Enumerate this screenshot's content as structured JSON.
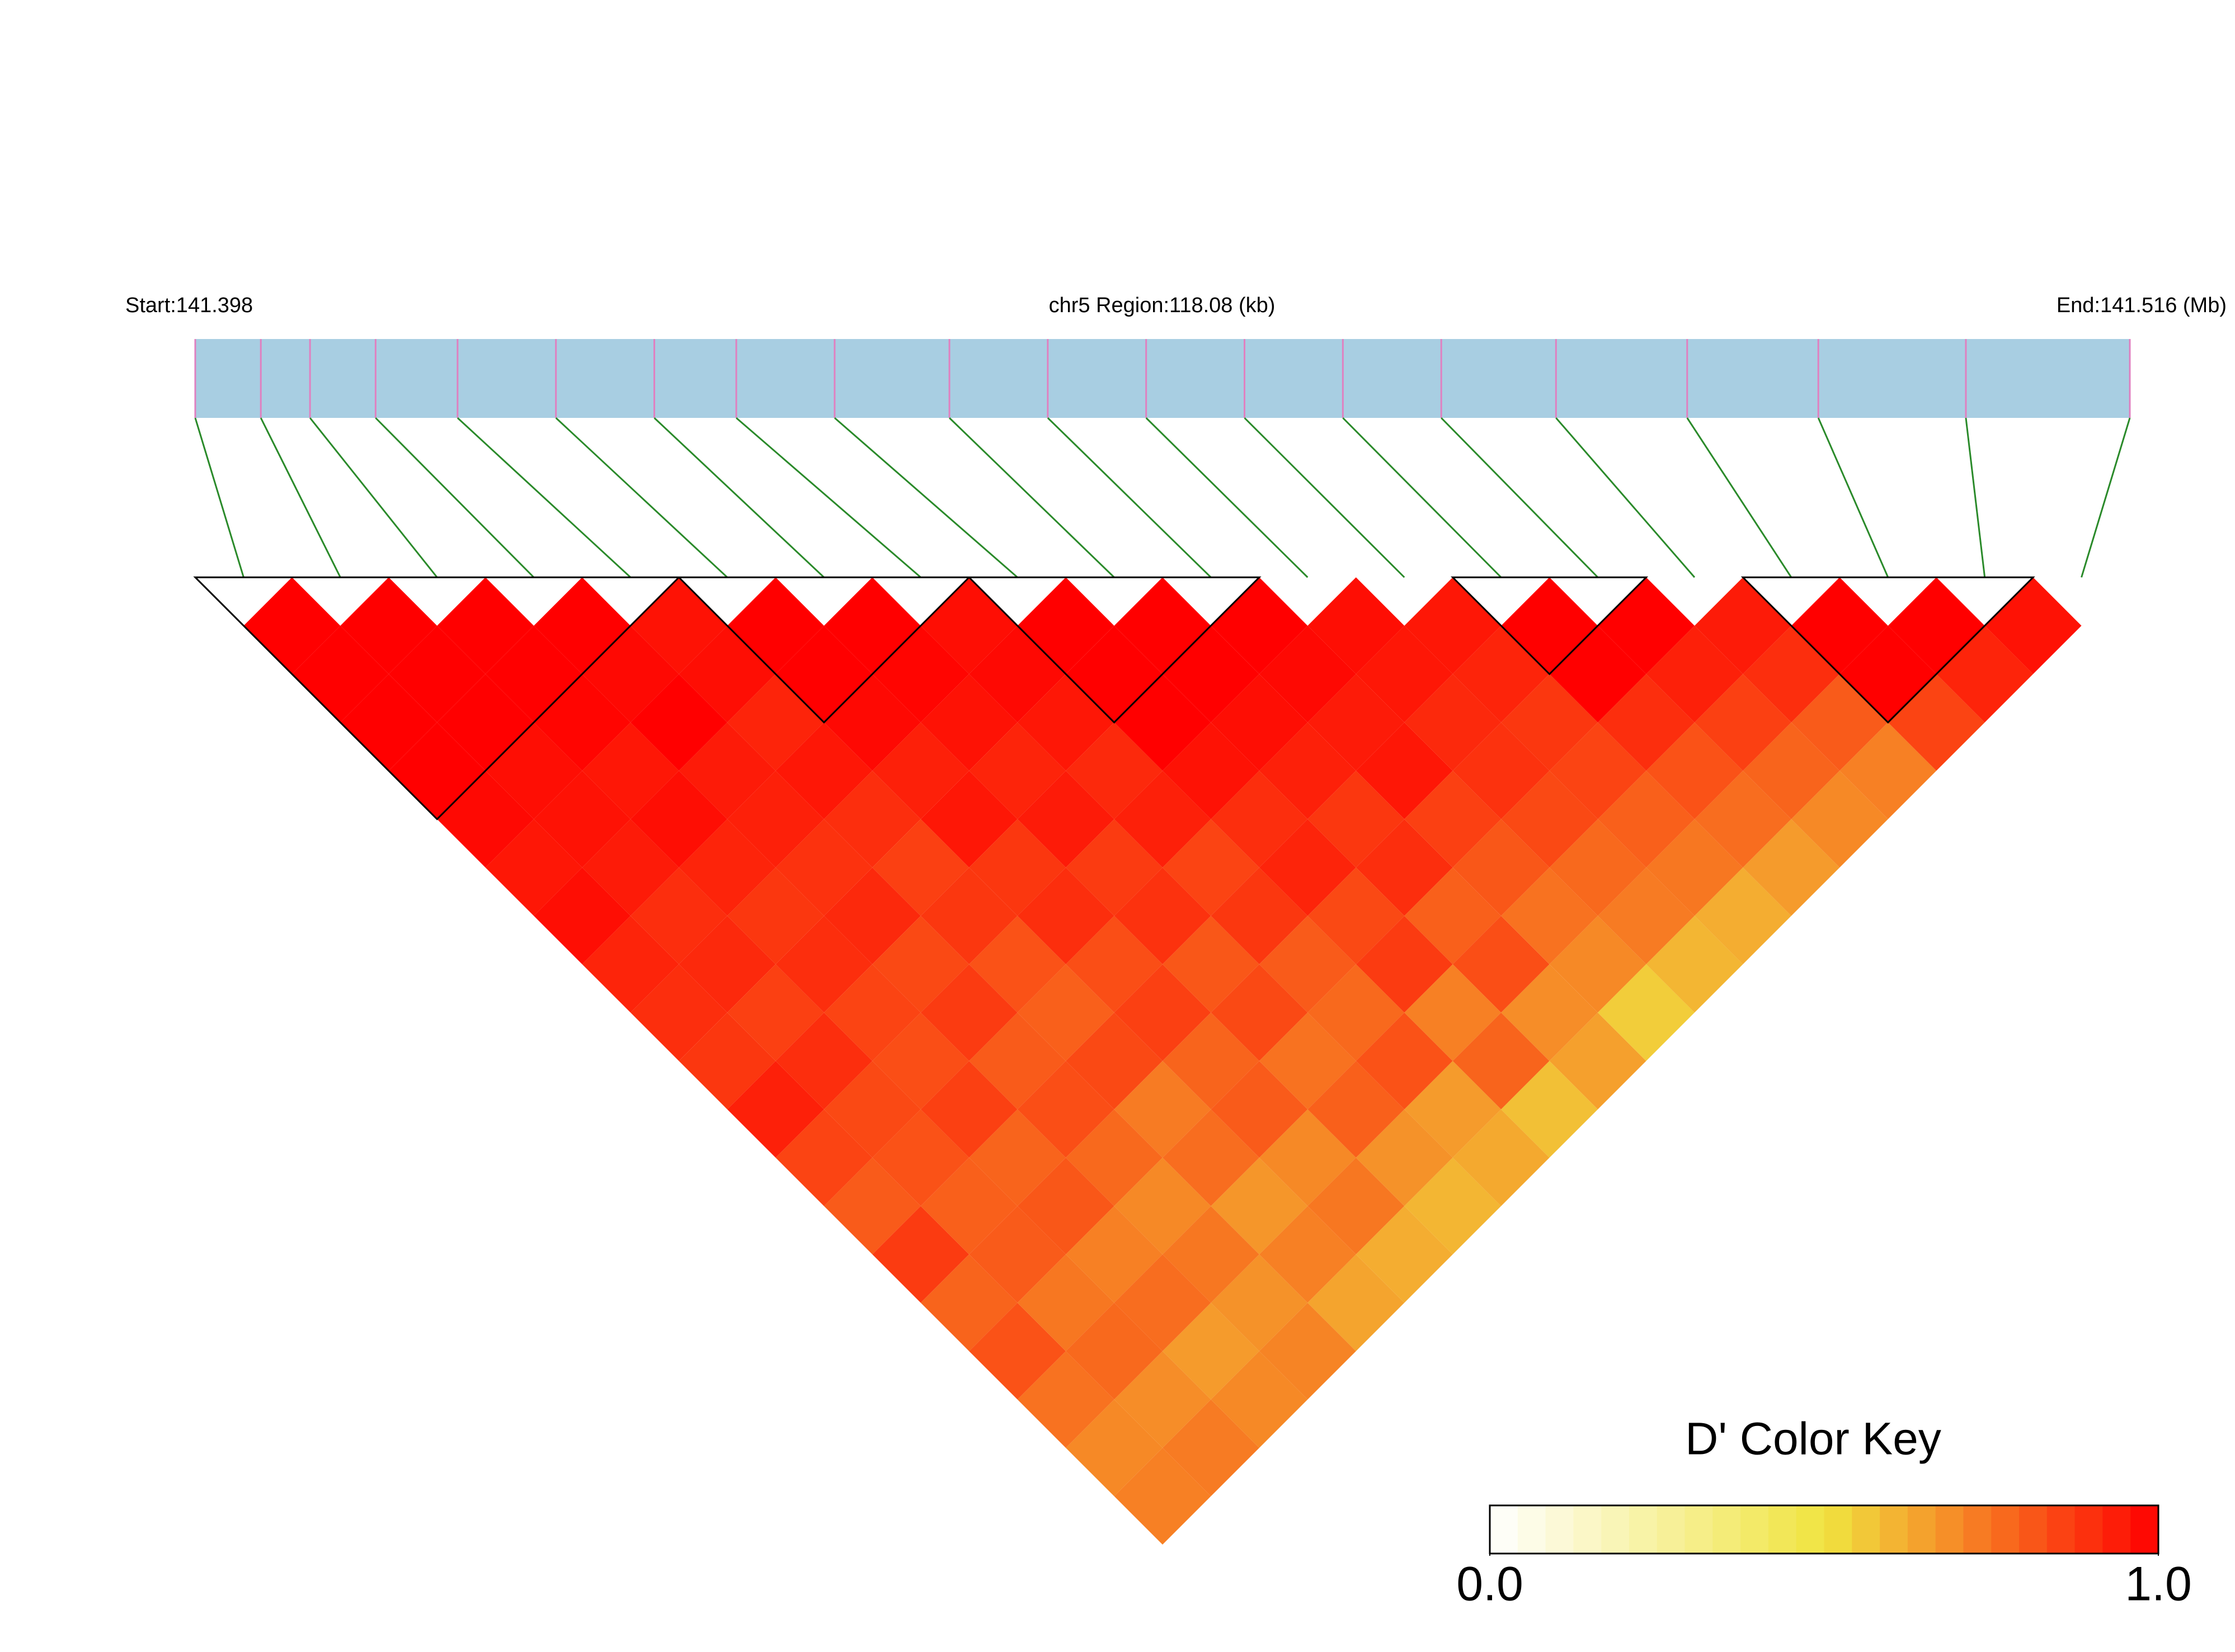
{
  "chart_data": {
    "type": "ld-heatmap",
    "start_label": "Start:141.398",
    "region_label": "chr5 Region:118.08 (kb)",
    "end_label": "End:141.516 (Mb)",
    "xlim": [
      141.398,
      141.516
    ],
    "positions": [
      141.398,
      141.402,
      141.405,
      141.409,
      141.414,
      141.42,
      141.426,
      141.431,
      141.437,
      141.444,
      141.45,
      141.456,
      141.462,
      141.468,
      141.474,
      141.481,
      141.489,
      141.497,
      141.506,
      141.516
    ],
    "dprime": [
      [
        1,
        1,
        1,
        1,
        0.98,
        0.95,
        0.97,
        0.92,
        0.9,
        0.88,
        0.93,
        0.85,
        0.8,
        0.87,
        0.78,
        0.82,
        0.75,
        0.7,
        0.72
      ],
      [
        1,
        1,
        1,
        0.97,
        0.96,
        0.94,
        0.9,
        0.91,
        0.86,
        0.9,
        0.84,
        0.82,
        0.79,
        0.8,
        0.74,
        0.77,
        0.69,
        0.73
      ],
      [
        1,
        1,
        0.99,
        0.95,
        0.97,
        0.92,
        0.88,
        0.9,
        0.85,
        0.83,
        0.86,
        0.78,
        0.81,
        0.72,
        0.76,
        0.66,
        0.7
      ],
      [
        1,
        0.98,
        1,
        0.94,
        0.93,
        0.89,
        0.91,
        0.84,
        0.87,
        0.8,
        0.83,
        0.77,
        0.7,
        0.74,
        0.68,
        0.71
      ],
      [
        0.96,
        0.97,
        0.92,
        0.95,
        0.9,
        0.86,
        0.88,
        0.82,
        0.79,
        0.84,
        0.73,
        0.76,
        0.67,
        0.72,
        0.64
      ],
      [
        1,
        1,
        0.98,
        0.93,
        0.95,
        0.88,
        0.9,
        0.83,
        0.86,
        0.78,
        0.8,
        0.7,
        0.74,
        0.62
      ],
      [
        1,
        0.99,
        0.96,
        0.92,
        0.94,
        0.87,
        0.89,
        0.81,
        0.84,
        0.75,
        0.79,
        0.68,
        0.6
      ],
      [
        0.97,
        0.98,
        0.95,
        0.91,
        0.93,
        0.85,
        0.88,
        0.8,
        0.77,
        0.82,
        0.66,
        0.63
      ],
      [
        1,
        1,
        1,
        0.96,
        0.9,
        0.92,
        0.84,
        0.87,
        0.72,
        0.78,
        0.58
      ],
      [
        1,
        1,
        0.97,
        0.93,
        0.88,
        0.9,
        0.79,
        0.83,
        0.69,
        0.65
      ],
      [
        1,
        0.98,
        0.94,
        0.95,
        0.86,
        0.81,
        0.75,
        0.7,
        0.55
      ],
      [
        0.97,
        0.95,
        0.91,
        0.89,
        0.84,
        0.77,
        0.73,
        0.6
      ],
      [
        0.95,
        0.92,
        0.88,
        0.85,
        0.79,
        0.74,
        0.62
      ],
      [
        1,
        1,
        0.9,
        0.82,
        0.76,
        0.66
      ],
      [
        1,
        0.93,
        0.86,
        0.78,
        0.7
      ],
      [
        0.94,
        0.9,
        0.8,
        0.72
      ],
      [
        1,
        1,
        0.85
      ],
      [
        1,
        0.92
      ],
      [
        0.96
      ]
    ],
    "blocks": [
      [
        0,
        4
      ],
      [
        5,
        7
      ],
      [
        8,
        10
      ],
      [
        13,
        14
      ],
      [
        16,
        18
      ]
    ],
    "colors": [
      "#ffffff",
      "#f0e440",
      "#ff0000"
    ],
    "bar_color": "#a8cee2",
    "tick_color": "#e080c0",
    "link_color": "#2a8a2a",
    "key_title": "D' Color Key",
    "key_lim": [
      0,
      1
    ],
    "key_ticks": [
      {
        "value": 0,
        "label": "0.0"
      },
      {
        "value": 1,
        "label": "1.0"
      }
    ]
  }
}
